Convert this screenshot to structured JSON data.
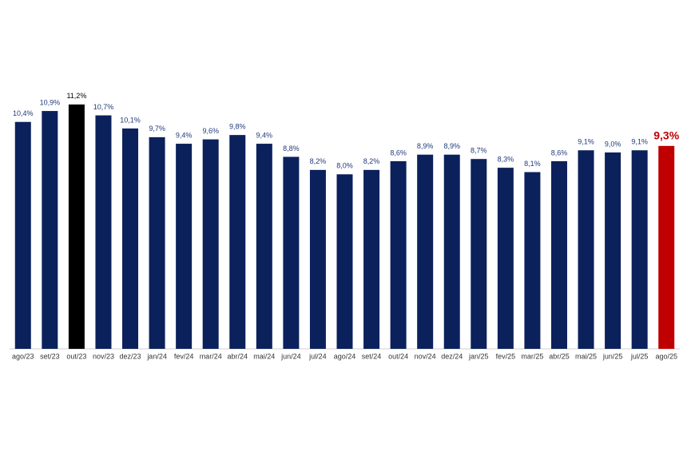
{
  "chart_data": {
    "type": "bar",
    "categories": [
      "ago/23",
      "set/23",
      "out/23",
      "nov/23",
      "dez/23",
      "jan/24",
      "fev/24",
      "mar/24",
      "abr/24",
      "mai/24",
      "jun/24",
      "jul/24",
      "ago/24",
      "set/24",
      "out/24",
      "nov/24",
      "dez/24",
      "jan/25",
      "fev/25",
      "mar/25",
      "abr/25",
      "mai/25",
      "jun/25",
      "jul/25",
      "ago/25"
    ],
    "values": [
      10.4,
      10.9,
      11.2,
      10.7,
      10.1,
      9.7,
      9.4,
      9.6,
      9.8,
      9.4,
      8.8,
      8.2,
      8.0,
      8.2,
      8.6,
      8.9,
      8.9,
      8.7,
      8.3,
      8.1,
      8.6,
      9.1,
      9.0,
      9.1,
      9.3
    ],
    "value_labels": [
      "10,4%",
      "10,9%",
      "11,2%",
      "10,7%",
      "10,1%",
      "9,7%",
      "9,4%",
      "9,6%",
      "9,8%",
      "9,4%",
      "8,8%",
      "8,2%",
      "8,0%",
      "8,2%",
      "8,6%",
      "8,9%",
      "8,9%",
      "8,7%",
      "8,3%",
      "8,1%",
      "8,6%",
      "9,1%",
      "9,0%",
      "9,1%",
      "9,3%"
    ],
    "colors": [
      "#0b215c",
      "#0b215c",
      "#000000",
      "#0b215c",
      "#0b215c",
      "#0b215c",
      "#0b215c",
      "#0b215c",
      "#0b215c",
      "#0b215c",
      "#0b215c",
      "#0b215c",
      "#0b215c",
      "#0b215c",
      "#0b215c",
      "#0b215c",
      "#0b215c",
      "#0b215c",
      "#0b215c",
      "#0b215c",
      "#0b215c",
      "#0b215c",
      "#0b215c",
      "#0b215c",
      "#c00000"
    ],
    "highlight_color": "#c00000",
    "ylim": [
      0,
      12
    ]
  }
}
